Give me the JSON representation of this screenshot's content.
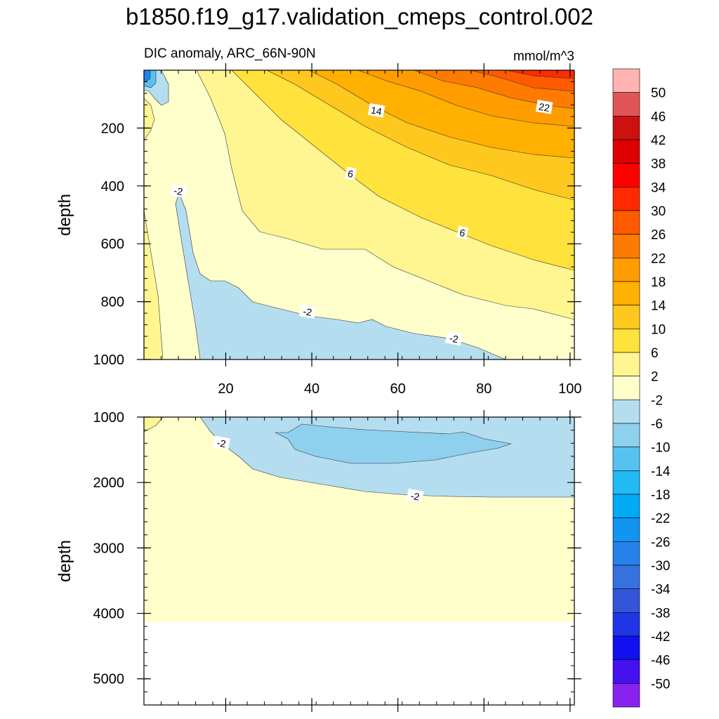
{
  "chart_data": {
    "type": "contour",
    "title": "b1850.f19_g17.validation_cmeps_control.002",
    "subtitle_left": "DIC anomaly, ARC_66N-90N",
    "units": "mmol/m^3",
    "xlim": [
      1,
      101
    ],
    "x_ticks": [
      20,
      40,
      60,
      80,
      100
    ],
    "x_tick_labels": [
      "20",
      "40",
      "60",
      "80",
      "100"
    ],
    "panels": [
      {
        "name": "upper",
        "ylabel": "depth",
        "ylim": [
          0,
          1000
        ],
        "y_ticks": [
          200,
          400,
          600,
          800,
          1000
        ],
        "y_tick_labels": [
          "200",
          "400",
          "600",
          "800",
          "1000"
        ],
        "contour_labels": [
          {
            "text": "14",
            "x": 55,
            "y": 140
          },
          {
            "text": "22",
            "x": 94,
            "y": 128
          },
          {
            "text": "6",
            "x": 49,
            "y": 358
          },
          {
            "text": "-2",
            "x": 9,
            "y": 418
          },
          {
            "text": "6",
            "x": 75,
            "y": 562
          },
          {
            "text": "-2",
            "x": 39,
            "y": 835
          },
          {
            "text": "-2",
            "x": 73,
            "y": 928
          }
        ]
      },
      {
        "name": "lower",
        "ylabel": "depth",
        "ylim": [
          1000,
          5400
        ],
        "y_ticks": [
          1000,
          2000,
          3000,
          4000,
          5000
        ],
        "y_tick_labels": [
          "1000",
          "2000",
          "3000",
          "4000",
          "5000"
        ],
        "contour_labels": [
          {
            "text": "-2",
            "x": 19,
            "y": 1400
          },
          {
            "text": "-2",
            "x": 64,
            "y": 2210
          }
        ]
      }
    ],
    "colorbar": {
      "levels": [
        "50",
        "46",
        "42",
        "38",
        "34",
        "30",
        "26",
        "22",
        "18",
        "14",
        "10",
        "6",
        "2",
        "-2",
        "-6",
        "-10",
        "-14",
        "-18",
        "-22",
        "-26",
        "-30",
        "-34",
        "-38",
        "-42",
        "-46",
        "-50"
      ],
      "colors": [
        "#FFB3B3",
        "#E05555",
        "#CC1111",
        "#DD0000",
        "#FF0000",
        "#FF2A00",
        "#FF5A00",
        "#FF7A00",
        "#FF9C00",
        "#FFB000",
        "#FFC81E",
        "#FFE23C",
        "#FFF591",
        "#FFFFCC",
        "#B5DDF0",
        "#8ED0EE",
        "#55C3F0",
        "#20BBF5",
        "#00AAF5",
        "#1195F0",
        "#2582E8",
        "#3572E0",
        "#3555D8",
        "#2035E5",
        "#1010F0",
        "#4511F0",
        "#8822EE"
      ]
    }
  }
}
